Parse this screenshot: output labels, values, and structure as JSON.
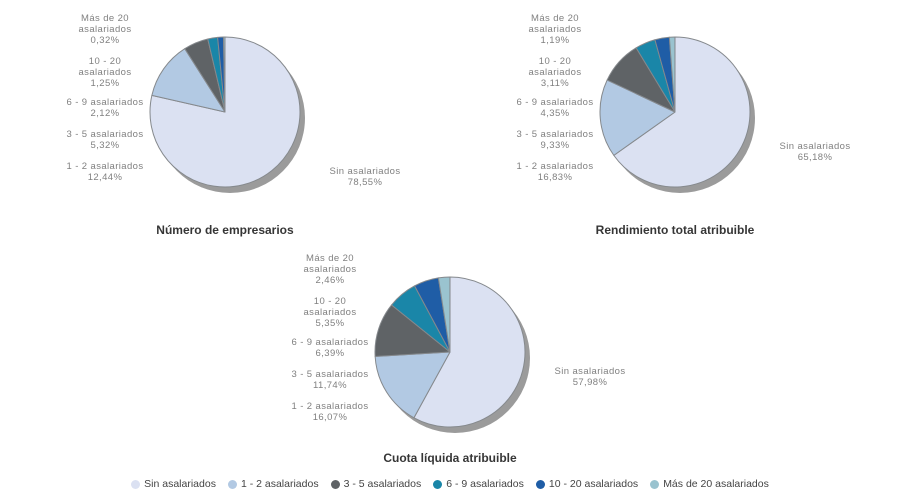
{
  "page": {
    "background": "#ffffff"
  },
  "legend": {
    "position": "bottom-center",
    "items": [
      {
        "label": "Sin asalariados",
        "color": "#dbe1f2"
      },
      {
        "label": "1 - 2 asalariados",
        "color": "#b2c9e3"
      },
      {
        "label": "3 - 5 asalariados",
        "color": "#5f6366"
      },
      {
        "label": "6 - 9 asalariados",
        "color": "#1a86a8"
      },
      {
        "label": "10 - 20 asalariados",
        "color": "#1f5da6"
      },
      {
        "label": "Más de 20 asalariados",
        "color": "#9ac3cf"
      }
    ]
  },
  "style_colors": {
    "slice_border": "#85898d",
    "pie_shadow": "#9b9b9b",
    "label_text": "#808080",
    "title_text": "#363636",
    "legend_text": "#444444"
  },
  "chart_data": [
    {
      "type": "pie",
      "title": "Número de empresarios",
      "start_angle": "top",
      "direction": "clockwise",
      "value_unit": "%",
      "slices": [
        {
          "label": "Sin asalariados",
          "label_lines": [
            "Sin asalariados"
          ],
          "value": 78.55,
          "value_display": "78,55%"
        },
        {
          "label": "1 - 2 asalariados",
          "label_lines": [
            "1 - 2 asalariados"
          ],
          "value": 12.44,
          "value_display": "12,44%"
        },
        {
          "label": "3 - 5 asalariados",
          "label_lines": [
            "3 - 5 asalariados"
          ],
          "value": 5.32,
          "value_display": "5,32%"
        },
        {
          "label": "6 - 9 asalariados",
          "label_lines": [
            "6 - 9 asalariados"
          ],
          "value": 2.12,
          "value_display": "2,12%"
        },
        {
          "label": "10 - 20 asalariados",
          "label_lines": [
            "10 - 20",
            "asalariados"
          ],
          "value": 1.25,
          "value_display": "1,25%"
        },
        {
          "label": "Más de 20 asalariados",
          "label_lines": [
            "Más de 20",
            "asalariados"
          ],
          "value": 0.32,
          "value_display": "0,32%"
        }
      ]
    },
    {
      "type": "pie",
      "title": "Rendimiento total atribuible",
      "start_angle": "top",
      "direction": "clockwise",
      "value_unit": "%",
      "slices": [
        {
          "label": "Sin asalariados",
          "label_lines": [
            "Sin asalariados"
          ],
          "value": 65.18,
          "value_display": "65,18%"
        },
        {
          "label": "1 - 2 asalariados",
          "label_lines": [
            "1 - 2 asalariados"
          ],
          "value": 16.83,
          "value_display": "16,83%"
        },
        {
          "label": "3 - 5 asalariados",
          "label_lines": [
            "3 - 5 asalariados"
          ],
          "value": 9.33,
          "value_display": "9,33%"
        },
        {
          "label": "6 - 9 asalariados",
          "label_lines": [
            "6 - 9 asalariados"
          ],
          "value": 4.35,
          "value_display": "4,35%"
        },
        {
          "label": "10 - 20 asalariados",
          "label_lines": [
            "10 - 20",
            "asalariados"
          ],
          "value": 3.11,
          "value_display": "3,11%"
        },
        {
          "label": "Más de 20 asalariados",
          "label_lines": [
            "Más de 20",
            "asalariados"
          ],
          "value": 1.19,
          "value_display": "1,19%"
        }
      ]
    },
    {
      "type": "pie",
      "title": "Cuota líquida atribuible",
      "start_angle": "top",
      "direction": "clockwise",
      "value_unit": "%",
      "slices": [
        {
          "label": "Sin asalariados",
          "label_lines": [
            "Sin asalariados"
          ],
          "value": 57.98,
          "value_display": "57,98%"
        },
        {
          "label": "1 - 2 asalariados",
          "label_lines": [
            "1 - 2 asalariados"
          ],
          "value": 16.07,
          "value_display": "16,07%"
        },
        {
          "label": "3 - 5 asalariados",
          "label_lines": [
            "3 - 5 asalariados"
          ],
          "value": 11.74,
          "value_display": "11,74%"
        },
        {
          "label": "6 - 9 asalariados",
          "label_lines": [
            "6 - 9 asalariados"
          ],
          "value": 6.39,
          "value_display": "6,39%"
        },
        {
          "label": "10 - 20 asalariados",
          "label_lines": [
            "10 - 20",
            "asalariados"
          ],
          "value": 5.35,
          "value_display": "5,35%"
        },
        {
          "label": "Más de 20 asalariados",
          "label_lines": [
            "Más de 20",
            "asalariados"
          ],
          "value": 2.46,
          "value_display": "2,46%"
        }
      ]
    }
  ]
}
